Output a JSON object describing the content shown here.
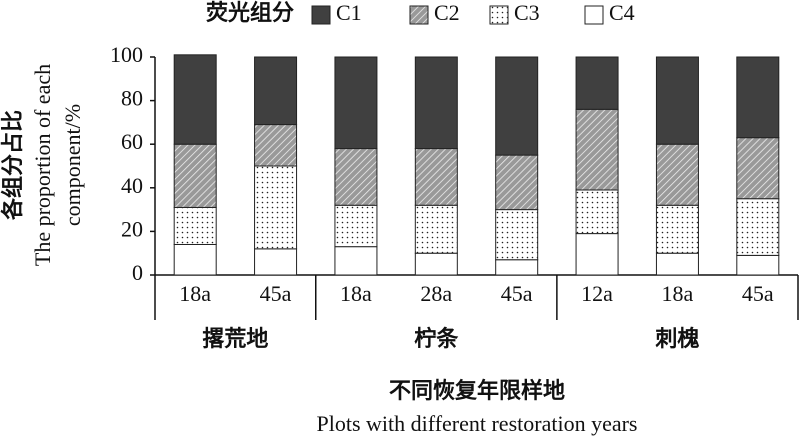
{
  "chart_data": {
    "type": "stacked_bar",
    "legend_title": "荧光组分",
    "y_label": [
      "各组分占比",
      "The proportion of each",
      "component/%"
    ],
    "x_label": [
      "不同恢复年限样地",
      "Plots with different restoration years"
    ],
    "groups": [
      {
        "name": "撂荒地",
        "categories": [
          "18a",
          "45a"
        ]
      },
      {
        "name": "柠条",
        "categories": [
          "18a",
          "28a",
          "45a"
        ]
      },
      {
        "name": "刺槐",
        "categories": [
          "12a",
          "18a",
          "45a"
        ]
      }
    ],
    "series": [
      {
        "name": "C1",
        "color": "#404040",
        "pattern": "solid",
        "values": [
          41,
          31,
          42,
          42,
          45,
          24,
          40,
          37
        ]
      },
      {
        "name": "C2",
        "color": "#999999",
        "pattern": "hatch",
        "values": [
          29,
          19,
          26,
          26,
          25,
          37,
          28,
          28
        ]
      },
      {
        "name": "C3",
        "color": "#ffffff",
        "pattern": "dots",
        "values": [
          17,
          38,
          19,
          22,
          23,
          20,
          22,
          26
        ]
      },
      {
        "name": "C4",
        "color": "#ffffff",
        "pattern": "none",
        "values": [
          14,
          12,
          13,
          10,
          7,
          19,
          10,
          9
        ]
      }
    ],
    "ylim": [
      0,
      100
    ],
    "yticks": [
      0,
      20,
      40,
      60,
      80,
      100
    ]
  }
}
